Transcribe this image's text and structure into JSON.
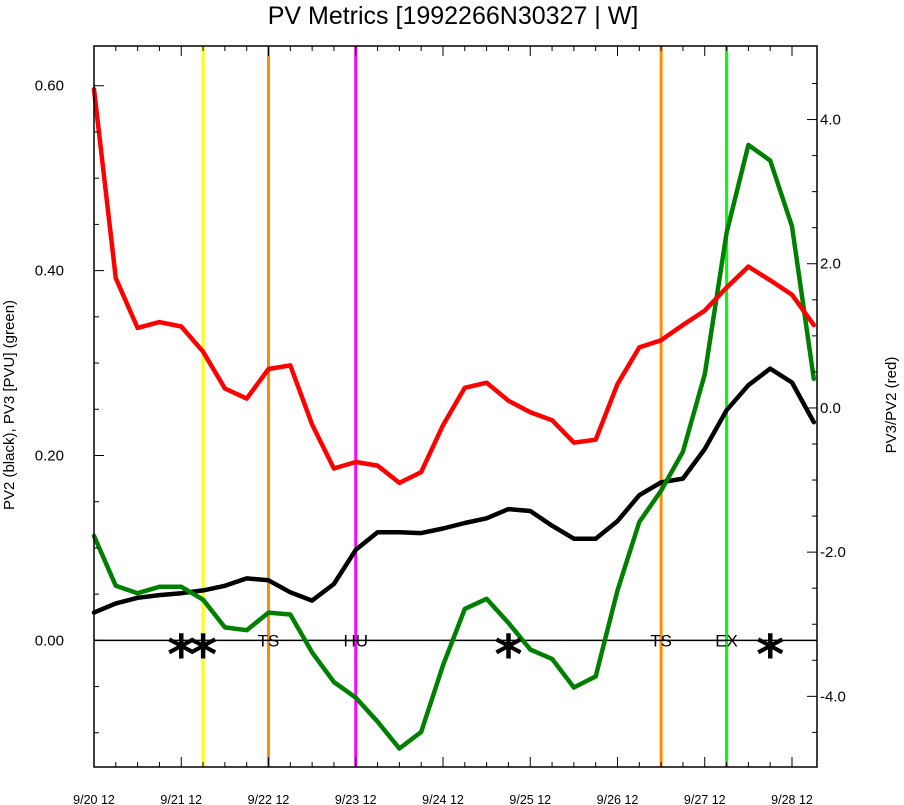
{
  "chart_data": {
    "type": "line",
    "title": "PV Metrics [1992266N30327 | W]",
    "ylabel_left": "PV2 (black), PV3 [PVU] (green)",
    "ylabel_right": "PV3/PV2 (red)",
    "xlim_hours": [
      0,
      192
    ],
    "ylim_left": [
      -0.137,
      0.643
    ],
    "ylim_right": [
      -4.98,
      5.02
    ],
    "x_ticks": [
      {
        "t": 0,
        "label": "9/20 12"
      },
      {
        "t": 24,
        "label": "9/21 12"
      },
      {
        "t": 48,
        "label": "9/22 12"
      },
      {
        "t": 72,
        "label": "9/23 12"
      },
      {
        "t": 96,
        "label": "9/24 12"
      },
      {
        "t": 120,
        "label": "9/25 12"
      },
      {
        "t": 144,
        "label": "9/26 12"
      },
      {
        "t": 168,
        "label": "9/27 12"
      },
      {
        "t": 192,
        "label": "9/28 12"
      }
    ],
    "y_ticks_left": [
      {
        "v": 0.0,
        "label": "0.00"
      },
      {
        "v": 0.2,
        "label": "0.20"
      },
      {
        "v": 0.4,
        "label": "0.40"
      },
      {
        "v": 0.6,
        "label": "0.60"
      }
    ],
    "y_ticks_right": [
      {
        "v": -4.0,
        "label": "-4.0"
      },
      {
        "v": -2.0,
        "label": "-2.0"
      },
      {
        "v": 0.0,
        "label": "0.0"
      },
      {
        "v": 2.0,
        "label": "2.0"
      },
      {
        "v": 4.0,
        "label": "4.0"
      }
    ],
    "series": [
      {
        "name": "PV2",
        "color": "#000000",
        "axis": "left",
        "x": [
          0,
          6,
          12,
          18,
          24,
          30,
          36,
          42,
          48,
          54,
          60,
          66,
          72,
          78,
          84,
          90,
          96,
          102,
          108,
          114,
          120,
          126,
          132,
          138,
          144,
          150,
          156,
          162,
          168,
          174,
          180,
          186,
          192,
          198
        ],
        "values": [
          0.03,
          0.04,
          0.046,
          0.049,
          0.051,
          0.054,
          0.059,
          0.067,
          0.065,
          0.052,
          0.043,
          0.061,
          0.098,
          0.117,
          0.117,
          0.116,
          0.121,
          0.127,
          0.132,
          0.142,
          0.14,
          0.124,
          0.11,
          0.11,
          0.129,
          0.157,
          0.171,
          0.175,
          0.207,
          0.249,
          0.276,
          0.294,
          0.279,
          0.236
        ]
      },
      {
        "name": "PV3",
        "color": "#008000",
        "axis": "left",
        "x": [
          0,
          6,
          12,
          18,
          24,
          30,
          36,
          42,
          48,
          54,
          60,
          66,
          72,
          78,
          84,
          90,
          96,
          102,
          108,
          114,
          120,
          126,
          132,
          138,
          144,
          150,
          156,
          162,
          168,
          174,
          180,
          186,
          192,
          198
        ],
        "values": [
          0.113,
          0.059,
          0.051,
          0.058,
          0.058,
          0.044,
          0.014,
          0.011,
          0.03,
          0.028,
          -0.013,
          -0.045,
          -0.062,
          -0.088,
          -0.117,
          -0.099,
          -0.027,
          0.034,
          0.045,
          0.019,
          -0.01,
          -0.02,
          -0.051,
          -0.039,
          0.054,
          0.128,
          0.162,
          0.204,
          0.288,
          0.441,
          0.536,
          0.519,
          0.448,
          0.283
        ]
      },
      {
        "name": "PV3/PV2",
        "color": "#ff0000",
        "axis": "right",
        "x": [
          0,
          6,
          12,
          18,
          24,
          30,
          36,
          42,
          48,
          54,
          60,
          66,
          72,
          78,
          84,
          90,
          96,
          102,
          108,
          114,
          120,
          126,
          132,
          138,
          144,
          150,
          156,
          162,
          168,
          174,
          180,
          186,
          192,
          198
        ],
        "values": [
          4.42,
          1.8,
          1.11,
          1.19,
          1.13,
          0.78,
          0.27,
          0.13,
          0.54,
          0.59,
          -0.23,
          -0.84,
          -0.75,
          -0.8,
          -1.04,
          -0.89,
          -0.24,
          0.28,
          0.35,
          0.1,
          -0.06,
          -0.17,
          -0.48,
          -0.44,
          0.33,
          0.84,
          0.94,
          1.15,
          1.35,
          1.67,
          1.96,
          1.77,
          1.57,
          1.15
        ]
      }
    ],
    "vertical_lines": [
      {
        "t": 30,
        "color": "#ffff00"
      },
      {
        "t": 48,
        "color": "#ff8c00"
      },
      {
        "t": 72,
        "color": "#ff00ff"
      },
      {
        "t": 156,
        "color": "#ff8c00"
      },
      {
        "t": 174,
        "color": "#00ff00"
      }
    ],
    "stage_labels": [
      {
        "t": 48,
        "label": "TS"
      },
      {
        "t": 72,
        "label": "HU"
      },
      {
        "t": 156,
        "label": "TS"
      },
      {
        "t": 174,
        "label": "EX"
      }
    ],
    "markers": [
      {
        "t": 24,
        "label": "*"
      },
      {
        "t": 30,
        "label": "*"
      },
      {
        "t": 114,
        "label": "*"
      },
      {
        "t": 186,
        "label": "*"
      }
    ],
    "zero_line_value": 0.0,
    "legend": "none",
    "grid": false
  }
}
